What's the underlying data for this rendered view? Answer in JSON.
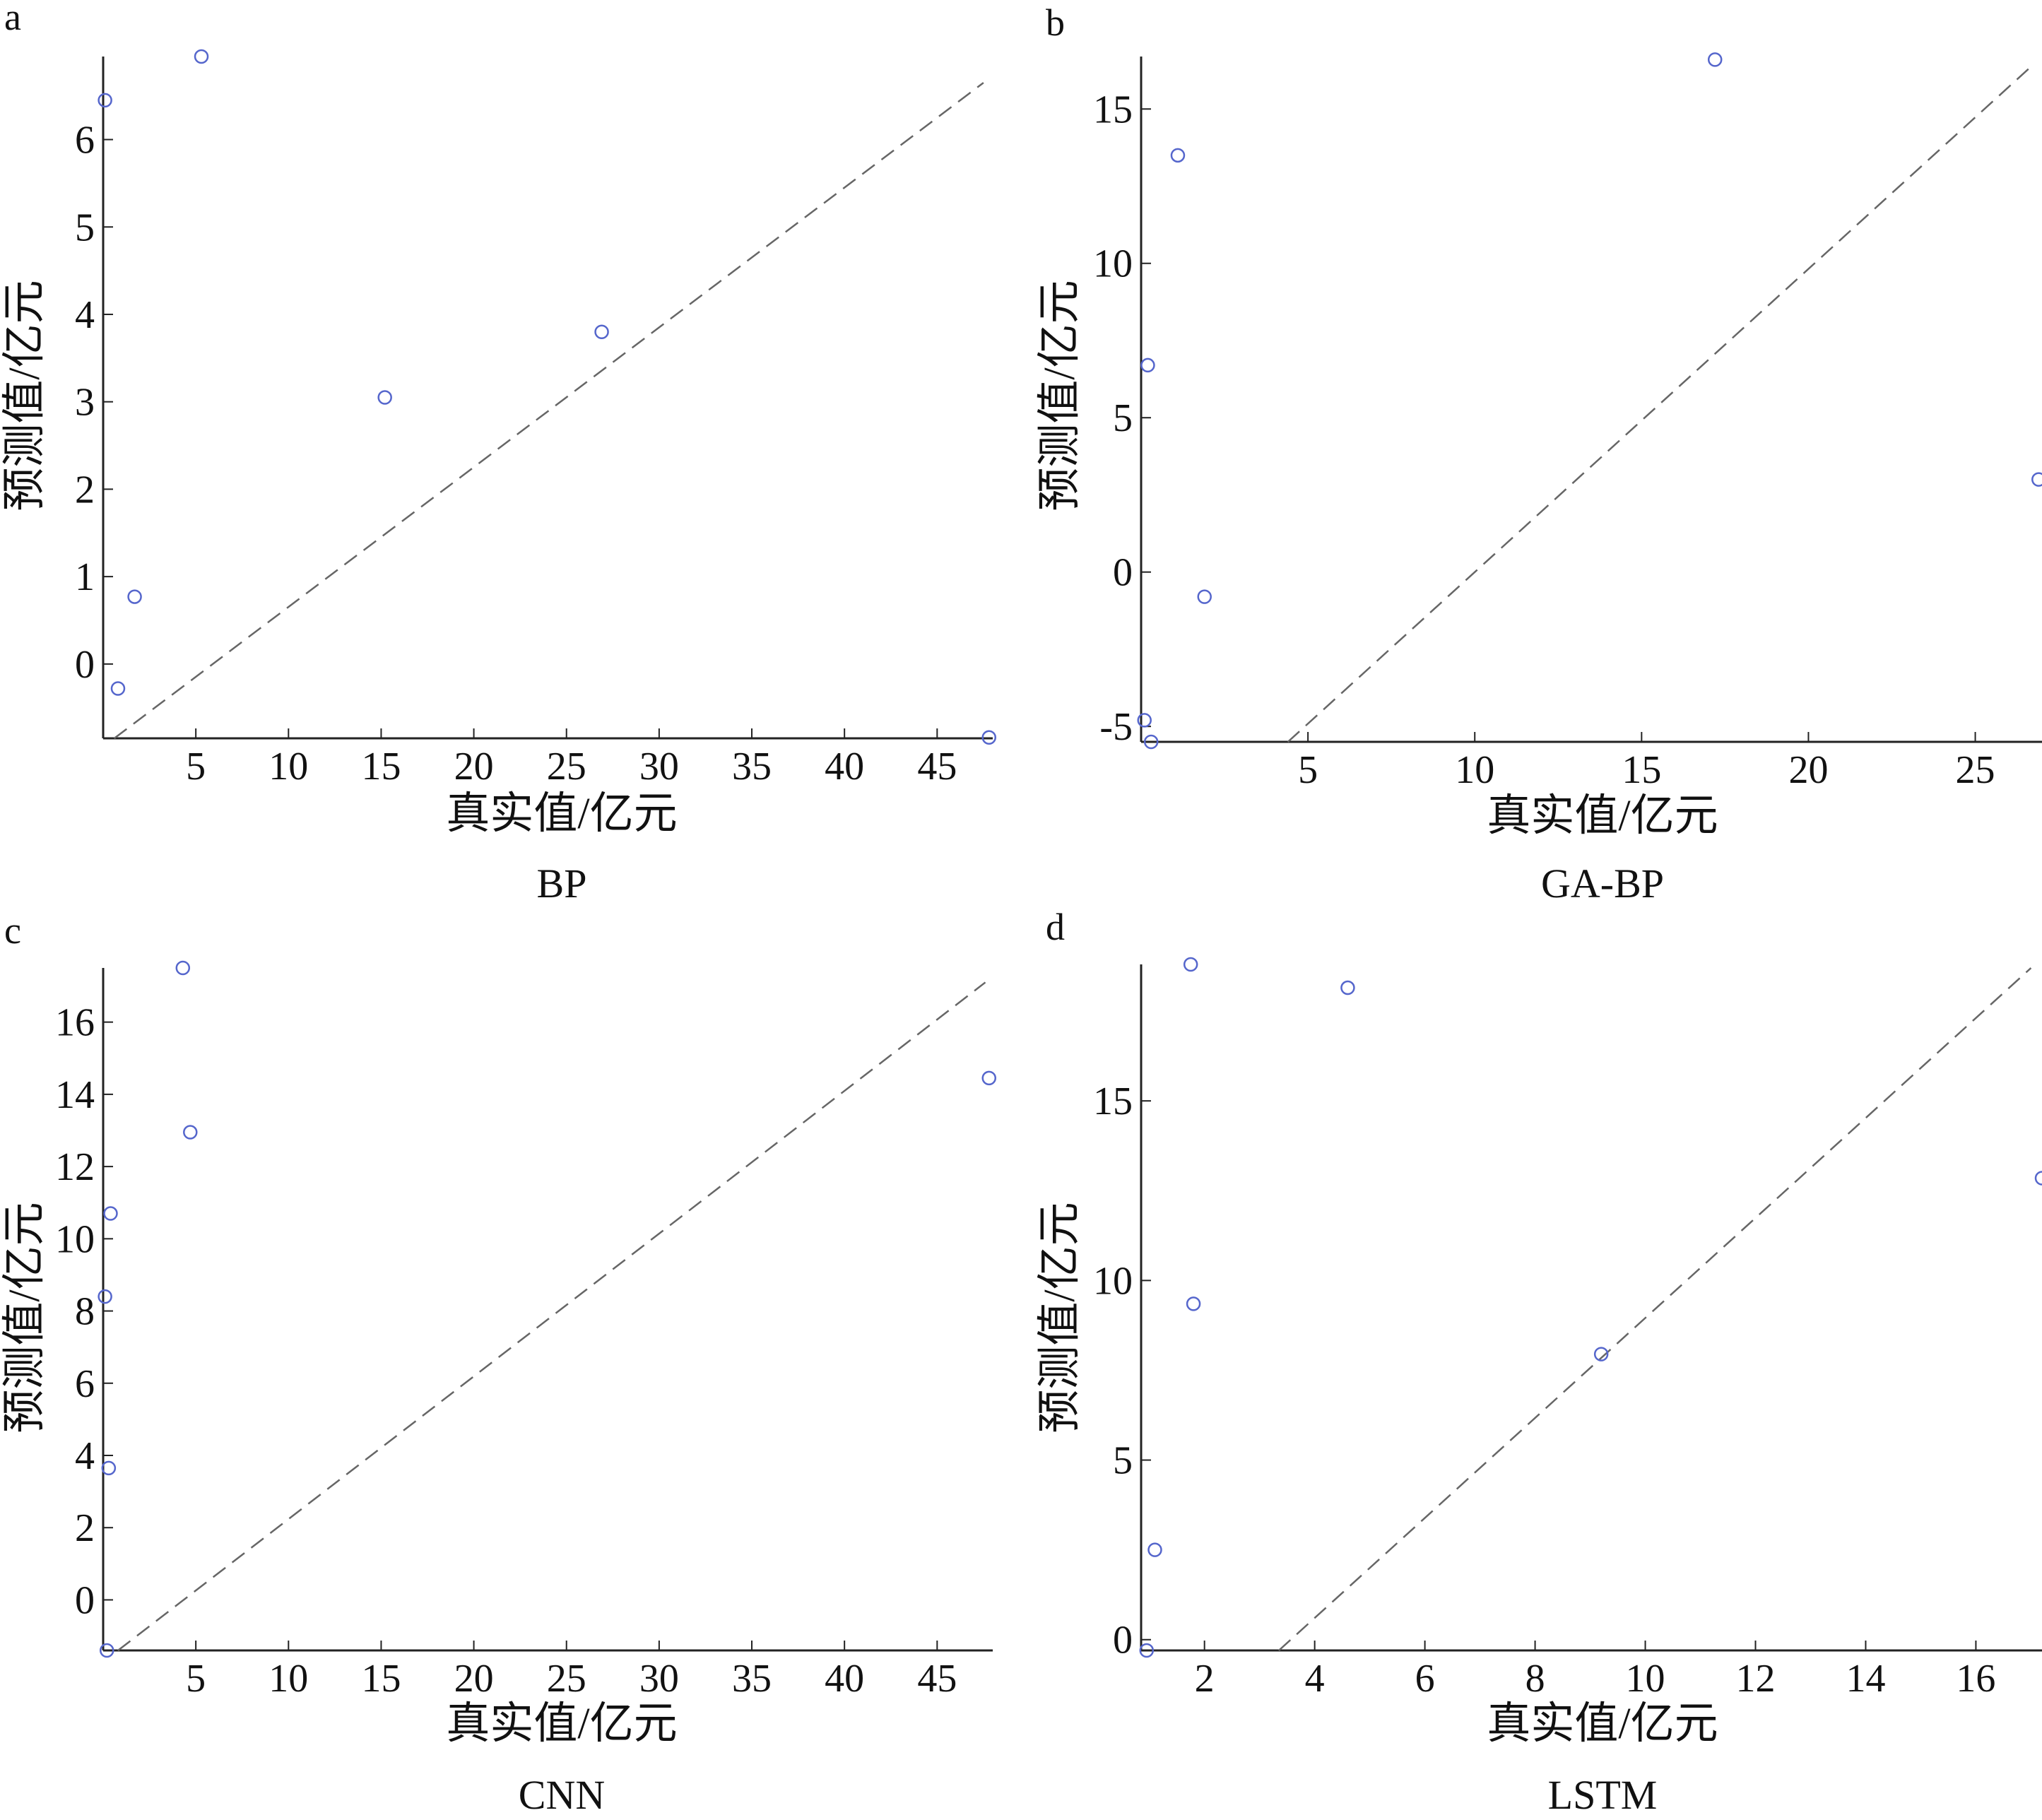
{
  "colors": {
    "marker": "#5566cc",
    "reference_line": "#666666",
    "axis": "#222222"
  },
  "chart_data": [
    {
      "type": "scatter",
      "panel_label": "a",
      "title": "BP",
      "xlabel": "真实值/亿元",
      "ylabel": "预测值/亿元",
      "xlim": [
        0,
        48
      ],
      "ylim": [
        -0.85,
        6.95
      ],
      "xticks": [
        5,
        10,
        15,
        20,
        25,
        30,
        35,
        40,
        45
      ],
      "yticks": [
        0,
        1,
        2,
        3,
        4,
        5,
        6
      ],
      "reference_line": {
        "style": "dashed",
        "x": [
          0.6,
          47.5
        ],
        "y": [
          -0.85,
          6.65
        ]
      },
      "series": [
        {
          "x": [
            0.1,
            5.3,
            0.8,
            1.7,
            15.2,
            26.9,
            47.8
          ],
          "y": [
            6.45,
            6.95,
            -0.28,
            0.77,
            3.05,
            3.8,
            -0.84
          ]
        }
      ]
    },
    {
      "type": "scatter",
      "panel_label": "b",
      "title": "GA-BP",
      "xlabel": "真实值/亿元",
      "ylabel": "预测值/亿元",
      "xlim": [
        0,
        27
      ],
      "ylim": [
        -5.5,
        16.7
      ],
      "xticks": [
        5,
        10,
        15,
        20,
        25
      ],
      "yticks": [
        -5,
        0,
        5,
        10,
        15
      ],
      "reference_line": {
        "style": "dashed",
        "x": [
          4.4,
          26.7
        ],
        "y": [
          -5.5,
          16.4
        ]
      },
      "series": [
        {
          "x": [
            17.2,
            1.1,
            0.1,
            0.3,
            1.9,
            26.9,
            0.2
          ],
          "y": [
            16.6,
            13.5,
            -4.8,
            -5.5,
            -0.8,
            3.0,
            6.7
          ]
        }
      ]
    },
    {
      "type": "scatter",
      "panel_label": "c",
      "title": "CNN",
      "xlabel": "真实值/亿元",
      "ylabel": "预测值/亿元",
      "xlim": [
        0,
        48
      ],
      "ylim": [
        -1.4,
        17.5
      ],
      "xticks": [
        5,
        10,
        15,
        20,
        25,
        30,
        35,
        40,
        45
      ],
      "yticks": [
        0,
        2,
        4,
        6,
        8,
        10,
        12,
        14,
        16
      ],
      "reference_line": {
        "style": "dashed",
        "x": [
          0.8,
          47.6
        ],
        "y": [
          -1.4,
          17.1
        ]
      },
      "series": [
        {
          "x": [
            4.3,
            4.7,
            0.4,
            0.1,
            0.3,
            0.2,
            47.8
          ],
          "y": [
            17.5,
            12.95,
            10.7,
            8.4,
            3.65,
            -1.4,
            14.45
          ]
        }
      ]
    },
    {
      "type": "scatter",
      "panel_label": "d",
      "title": "LSTM",
      "xlabel": "真实值/亿元",
      "ylabel": "预测值/亿元",
      "xlim": [
        0.85,
        17.2
      ],
      "ylim": [
        -0.3,
        18.8
      ],
      "xticks": [
        2,
        4,
        6,
        8,
        10,
        12,
        14,
        16
      ],
      "yticks": [
        0,
        5,
        10,
        15
      ],
      "reference_line": {
        "style": "dashed",
        "x": [
          3.35,
          17.0
        ],
        "y": [
          -0.3,
          18.7
        ]
      },
      "series": [
        {
          "x": [
            1.75,
            4.6,
            1.8,
            9.2,
            1.1,
            0.95,
            17.2
          ],
          "y": [
            18.8,
            18.15,
            9.35,
            7.95,
            2.5,
            -0.3,
            12.85
          ]
        }
      ]
    }
  ]
}
